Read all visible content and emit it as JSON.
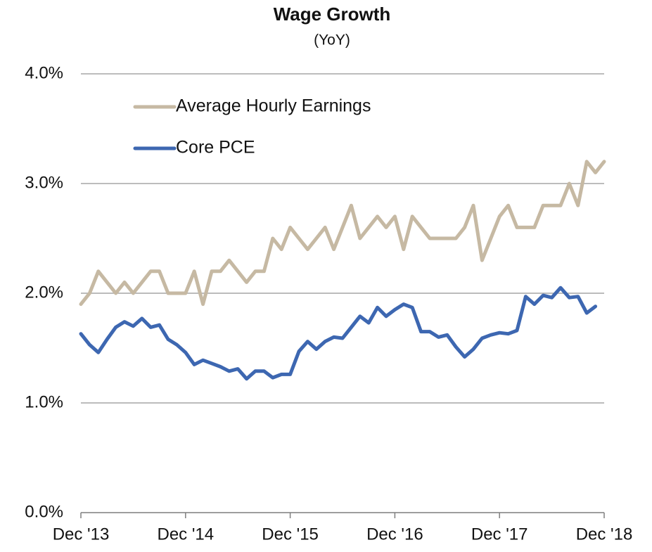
{
  "chart_data": {
    "type": "line",
    "title": "Wage Growth",
    "subtitle": "(YoY)",
    "categories": [
      "Dec '13",
      null,
      null,
      null,
      null,
      null,
      null,
      null,
      null,
      null,
      null,
      null,
      "Dec '14",
      null,
      null,
      null,
      null,
      null,
      null,
      null,
      null,
      null,
      null,
      null,
      "Dec '15",
      null,
      null,
      null,
      null,
      null,
      null,
      null,
      null,
      null,
      null,
      null,
      "Dec '16",
      null,
      null,
      null,
      null,
      null,
      null,
      null,
      null,
      null,
      null,
      null,
      "Dec '17",
      null,
      null,
      null,
      null,
      null,
      null,
      null,
      null,
      null,
      null,
      null,
      "Dec '18"
    ],
    "series": [
      {
        "name": "Average Hourly Earnings",
        "color": "#c6b9a3",
        "values": [
          1.9,
          2.0,
          2.2,
          2.1,
          2.0,
          2.1,
          2.0,
          2.1,
          2.2,
          2.2,
          2.0,
          2.0,
          2.0,
          2.2,
          1.9,
          2.2,
          2.2,
          2.3,
          2.2,
          2.1,
          2.2,
          2.2,
          2.5,
          2.4,
          2.6,
          2.5,
          2.4,
          2.5,
          2.6,
          2.4,
          2.6,
          2.8,
          2.5,
          2.6,
          2.7,
          2.6,
          2.7,
          2.4,
          2.7,
          2.6,
          2.5,
          2.5,
          2.5,
          2.5,
          2.6,
          2.8,
          2.3,
          2.5,
          2.7,
          2.8,
          2.6,
          2.6,
          2.6,
          2.8,
          2.8,
          2.8,
          3.0,
          2.8,
          3.2,
          3.1,
          3.2
        ]
      },
      {
        "name": "Core PCE",
        "color": "#3d67b1",
        "values": [
          1.63,
          1.53,
          1.46,
          1.58,
          1.69,
          1.74,
          1.7,
          1.77,
          1.69,
          1.71,
          1.58,
          1.53,
          1.46,
          1.35,
          1.39,
          1.36,
          1.33,
          1.29,
          1.31,
          1.22,
          1.29,
          1.29,
          1.23,
          1.26,
          1.26,
          1.47,
          1.56,
          1.49,
          1.56,
          1.6,
          1.59,
          1.69,
          1.79,
          1.73,
          1.87,
          1.79,
          1.85,
          1.9,
          1.87,
          1.65,
          1.65,
          1.6,
          1.62,
          1.51,
          1.42,
          1.49,
          1.59,
          1.62,
          1.64,
          1.63,
          1.66,
          1.97,
          1.9,
          1.98,
          1.96,
          2.05,
          1.96,
          1.97,
          1.82,
          1.88,
          null
        ]
      }
    ],
    "ylim": [
      0,
      4
    ],
    "yticks": [
      {
        "value": 0,
        "label": "0.0%"
      },
      {
        "value": 1,
        "label": "1.0%"
      },
      {
        "value": 2,
        "label": "2.0%"
      },
      {
        "value": 3,
        "label": "3.0%"
      },
      {
        "value": 4,
        "label": "4.0%"
      }
    ],
    "grid": true,
    "legend": "upper left"
  }
}
